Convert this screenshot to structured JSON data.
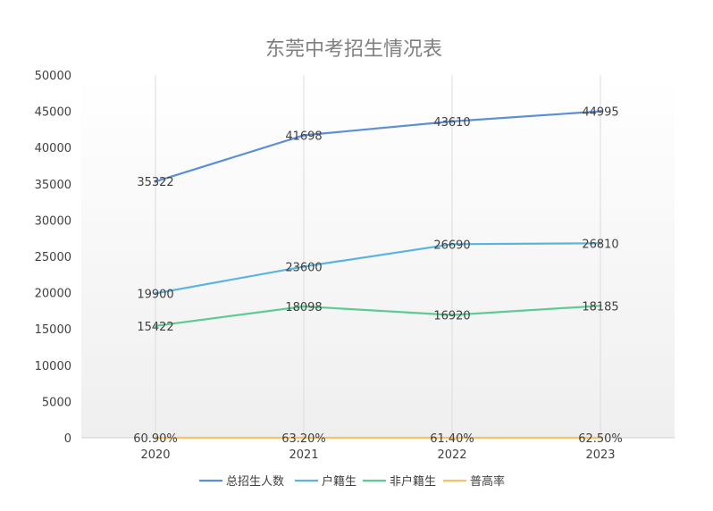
{
  "chart_data": {
    "type": "line",
    "title": "东莞中考招生情况表",
    "categories": [
      "2020",
      "2021",
      "2022",
      "2023"
    ],
    "ylim": [
      0,
      50000
    ],
    "yticks": [
      "0",
      "5000",
      "10000",
      "15000",
      "20000",
      "25000",
      "30000",
      "35000",
      "40000",
      "45000",
      "50000"
    ],
    "grid": "vertical",
    "legend_position": "bottom",
    "series": [
      {
        "name": "总招生人数",
        "color": "#5b8fd6",
        "values": [
          35322,
          41698,
          43610,
          44995
        ],
        "labels": [
          "35322",
          "41698",
          "43610",
          "44995"
        ]
      },
      {
        "name": "户籍生",
        "color": "#5ab4e0",
        "values": [
          19900,
          23600,
          26690,
          26810
        ],
        "labels": [
          "19900",
          "23600",
          "26690",
          "26810"
        ]
      },
      {
        "name": "非户籍生",
        "color": "#5ecb94",
        "values": [
          15422,
          18098,
          16920,
          18185
        ],
        "labels": [
          "15422",
          "18098",
          "16920",
          "18185"
        ]
      },
      {
        "name": "普高率",
        "color": "#f9c16a",
        "values": [
          0.609,
          0.632,
          0.614,
          0.625
        ],
        "labels": [
          "60.90%",
          "63.20%",
          "61.40%",
          "62.50%"
        ]
      }
    ]
  }
}
